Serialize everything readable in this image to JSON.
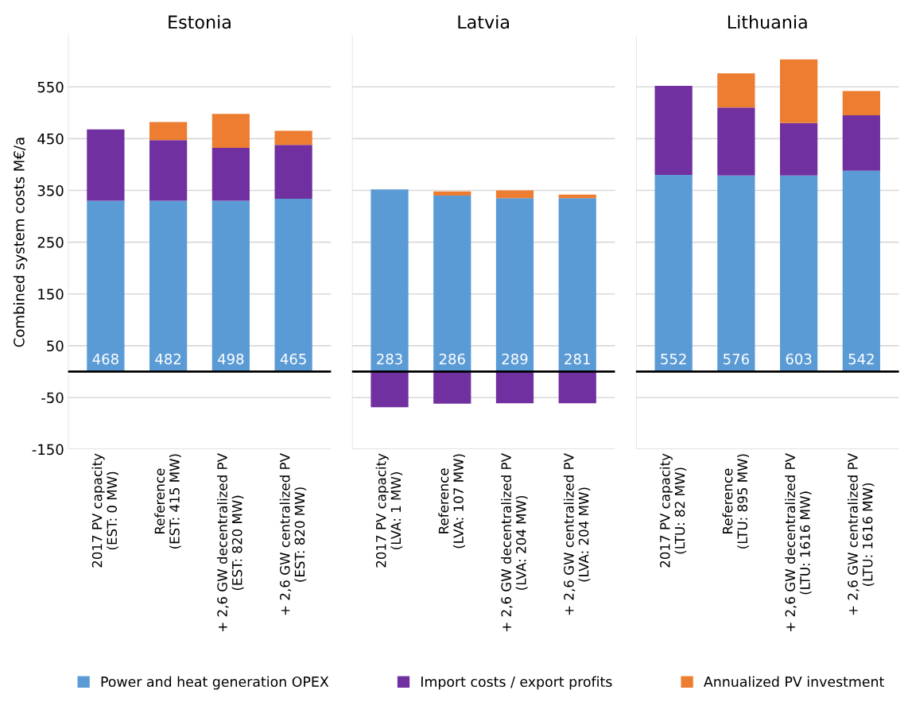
{
  "chart_data": [
    {
      "type": "bar",
      "stacked": true,
      "title": "Estonia",
      "ylabel": "Combined system costs M€/a",
      "categories": [
        "2017 PV capacity\n(EST: 0 MW)",
        "Reference\n(EST: 415 MW)",
        "+ 2,6 GW decentralized PV\n(EST: 820 MW)",
        "+ 2,6 GW centralized PV\n(EST: 820 MW)"
      ],
      "series": [
        {
          "name": "Power and heat generation OPEX",
          "color": "#5b9bd5",
          "values": [
            330,
            330,
            330,
            334
          ]
        },
        {
          "name": "Import costs / export profits",
          "color": "#7030a0",
          "values": [
            138,
            117,
            102,
            104
          ]
        },
        {
          "name": "Annualized PV investment",
          "color": "#ed7d31",
          "values": [
            0,
            35,
            66,
            27
          ]
        }
      ],
      "totals": [
        "468",
        "482",
        "498",
        "465"
      ],
      "ylim": [
        -150,
        650
      ],
      "yticks": [
        -150,
        -50,
        50,
        150,
        250,
        350,
        450,
        550
      ],
      "grid": "y",
      "ref_lines": [
        {
          "axis": "y",
          "value": 0,
          "color": "#000000"
        }
      ],
      "legend": "bottom"
    },
    {
      "type": "bar",
      "stacked": true,
      "title": "Latvia",
      "categories": [
        "2017 PV capacity\n(LVA: 1 MW)",
        "Reference\n(LVA: 107 MW)",
        "+ 2,6 GW decentralized PV\n(LVA: 204 MW)",
        "+ 2,6 GW centralized PV\n(LVA: 204 MW)"
      ],
      "series": [
        {
          "color": "#5b9bd5",
          "values": [
            352,
            340,
            335,
            335
          ]
        },
        {
          "color": "#7030a0",
          "values": [
            -69,
            -62,
            -61,
            -61
          ]
        },
        {
          "color": "#ed7d31",
          "values": [
            0,
            8,
            15,
            7
          ]
        }
      ],
      "totals": [
        "283",
        "286",
        "289",
        "281"
      ],
      "ylim": [
        -150,
        650
      ],
      "yticks": [
        -150,
        -50,
        50,
        150,
        250,
        350,
        450,
        550
      ],
      "grid": "y",
      "tick_labels": "x",
      "ref_lines": [
        {
          "axis": "y",
          "value": 0,
          "color": "#000000"
        }
      ]
    },
    {
      "type": "bar",
      "stacked": true,
      "title": "Lithuania",
      "categories": [
        "2017 PV capacity\n(LTU: 82 MW)",
        "Reference\n(LTU: 895 MW)",
        "+ 2,6 GW decentralized PV\n(LTU: 1616 MW)",
        "+ 2,6 GW centralized PV\n(LTU: 1616 MW)"
      ],
      "series": [
        {
          "color": "#5b9bd5",
          "values": [
            380,
            379,
            379,
            388
          ]
        },
        {
          "color": "#7030a0",
          "values": [
            172,
            131,
            101,
            107
          ]
        },
        {
          "color": "#ed7d31",
          "values": [
            0,
            66,
            123,
            47
          ]
        }
      ],
      "totals": [
        "552",
        "576",
        "603",
        "542"
      ],
      "ylim": [
        -150,
        650
      ],
      "yticks": [
        -150,
        -50,
        50,
        150,
        250,
        350,
        450,
        550
      ],
      "grid": "y",
      "tick_labels": "x",
      "ref_lines": [
        {
          "axis": "y",
          "value": 0,
          "color": "#000000"
        }
      ]
    }
  ]
}
